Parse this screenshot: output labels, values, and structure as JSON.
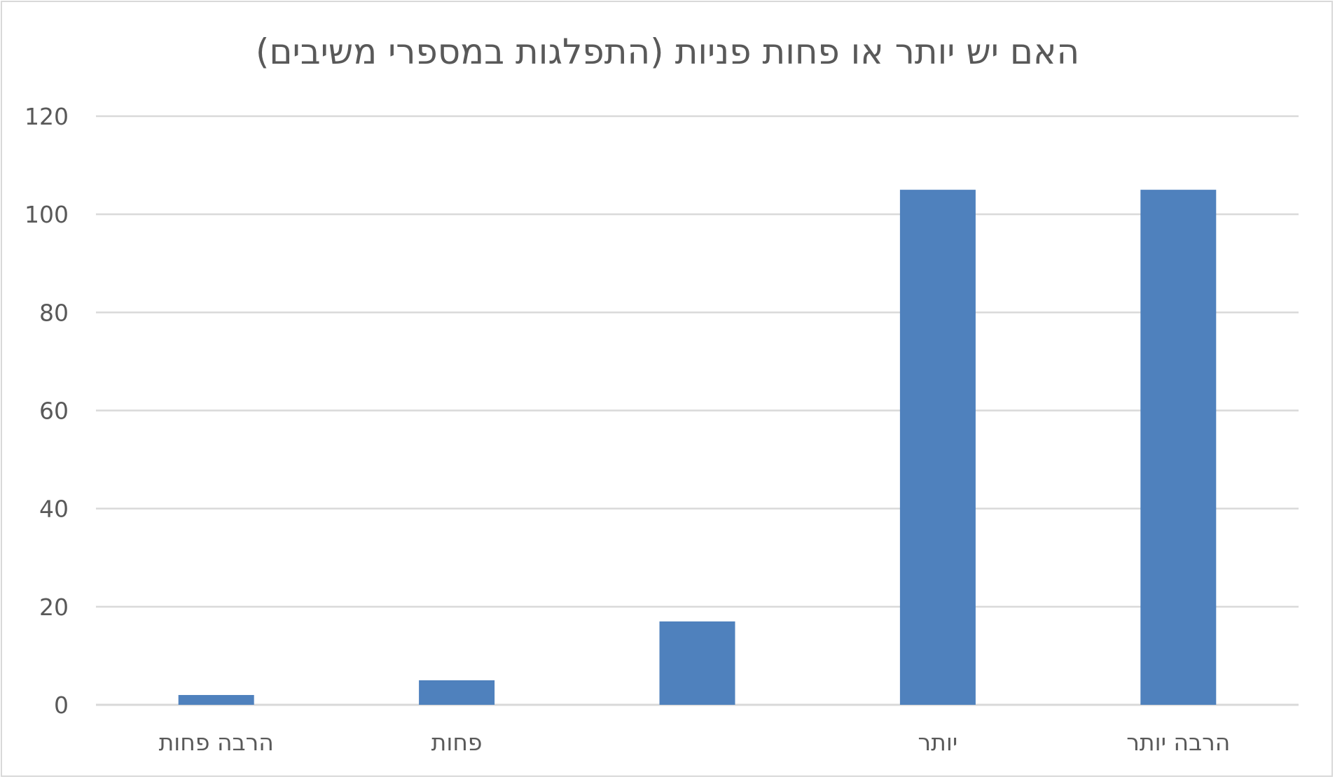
{
  "chart_data": {
    "type": "bar",
    "title": "האם יש יותר או פחות פניות (התפלגות במספרי משיבים)",
    "categories": [
      "הרבה פחות",
      "פחות",
      "",
      "יותר",
      "הרבה יותר"
    ],
    "values": [
      2,
      5,
      17,
      105,
      105
    ],
    "xlabel": "",
    "ylabel": "",
    "ylim": [
      0,
      120
    ],
    "yticks": [
      0,
      20,
      40,
      60,
      80,
      100,
      120
    ],
    "grid": true,
    "legend": "none",
    "bar_color": "#4f81bd",
    "grid_color": "#d9d9d9",
    "text_color": "#595959"
  }
}
